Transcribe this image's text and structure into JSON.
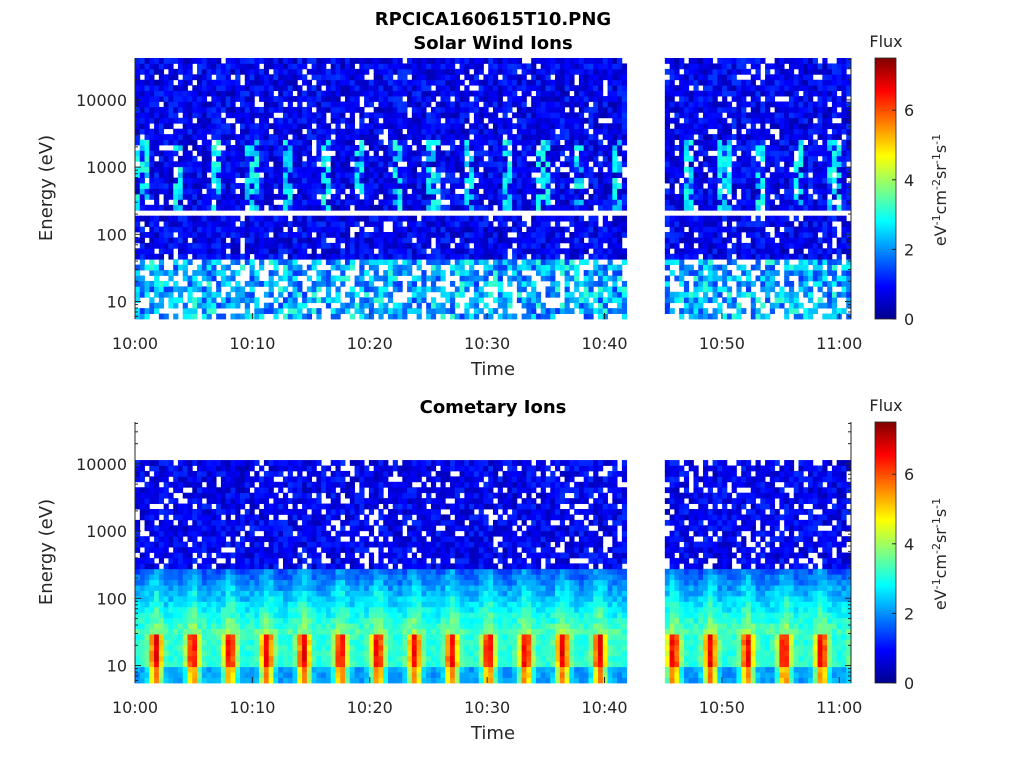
{
  "figure_title": "RPCICA160615T10.PNG",
  "colors": {
    "colormap": "jet",
    "axis": "#262626",
    "gap": "#ffffff"
  },
  "chart_data": [
    {
      "type": "heatmap",
      "title": "Solar Wind Ions",
      "xlabel": "Time",
      "ylabel": "Energy (eV)",
      "x_ticks": [
        "10:00",
        "10:10",
        "10:20",
        "10:30",
        "10:40",
        "10:50",
        "11:00"
      ],
      "x_range": [
        "10:00",
        "11:01"
      ],
      "y_scale": "log",
      "y_ticks": [
        10,
        100,
        1000,
        10000
      ],
      "y_tick_labels": [
        "10",
        "100",
        "1000",
        "10000"
      ],
      "y_range": [
        5.5,
        42000
      ],
      "data_gap": [
        "10:42",
        "10:45"
      ],
      "colorbar": {
        "label": "Flux",
        "units": "eV-1cm-2sr-1s-1",
        "ticks": [
          0,
          2,
          4,
          6
        ],
        "range": [
          0,
          7.5
        ]
      },
      "features": [
        {
          "energy_range": [
            5.5,
            40
          ],
          "flux": "2-4",
          "pattern": "sporadic low-energy blocks with white gaps"
        },
        {
          "energy_range": [
            200,
            3000
          ],
          "flux": "2-3",
          "pattern": "periodic cyan patches near 300-2500 eV"
        },
        {
          "energy_range": [
            40,
            42000
          ],
          "flux": "0-1.5",
          "pattern": "dark blue background"
        }
      ]
    },
    {
      "type": "heatmap",
      "title": "Cometary Ions",
      "xlabel": "Time",
      "ylabel": "Energy (eV)",
      "x_ticks": [
        "10:00",
        "10:10",
        "10:20",
        "10:30",
        "10:40",
        "10:50",
        "11:00"
      ],
      "x_range": [
        "10:00",
        "11:01"
      ],
      "y_scale": "log",
      "y_ticks": [
        10,
        100,
        1000,
        10000
      ],
      "y_tick_labels": [
        "10",
        "100",
        "1000",
        "10000"
      ],
      "y_range": [
        5.5,
        42000
      ],
      "data_gap": [
        "10:42",
        "10:45"
      ],
      "colorbar": {
        "label": "Flux",
        "units": "eV-1cm-2sr-1s-1",
        "ticks": [
          0,
          2,
          4,
          6
        ],
        "range": [
          0,
          7.5
        ]
      },
      "features": [
        {
          "energy_range": [
            10,
            30
          ],
          "flux": "5-6.5",
          "pattern": "periodic orange-red peaks every ~3 min"
        },
        {
          "energy_range": [
            30,
            300
          ],
          "flux": "2-4",
          "pattern": "cyan-green band"
        },
        {
          "energy_range": [
            300,
            11000
          ],
          "flux": "0-1.5",
          "pattern": "blue with white gaps"
        }
      ]
    }
  ]
}
